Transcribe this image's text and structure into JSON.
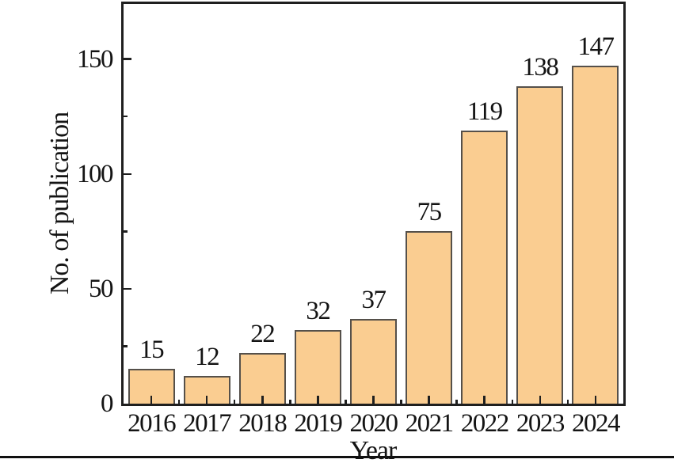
{
  "chart_data": {
    "type": "bar",
    "title": "",
    "xlabel": "Year",
    "ylabel": "No. of publication",
    "categories": [
      "2016",
      "2017",
      "2018",
      "2019",
      "2020",
      "2021",
      "2022",
      "2023",
      "2024"
    ],
    "values": [
      15,
      12,
      22,
      32,
      37,
      75,
      119,
      138,
      147
    ],
    "bar_value_labels": [
      "15",
      "12",
      "22",
      "32",
      "37",
      "75",
      "119",
      "138",
      "147"
    ],
    "ylim": [
      0,
      174
    ],
    "yticks_major": [
      {
        "value": 0,
        "label": "0"
      },
      {
        "value": 50,
        "label": "50"
      },
      {
        "value": 100,
        "label": "100"
      },
      {
        "value": 150,
        "label": "150"
      }
    ],
    "yticks_minor": [
      25,
      75,
      125
    ],
    "grid": false,
    "legend": null,
    "bar_fill_color": "#FACD91",
    "bar_border_color": "#55504A",
    "axis_color": "#1F1F1F",
    "text_color": "#141414",
    "bottom_rule_color": "#101010"
  }
}
